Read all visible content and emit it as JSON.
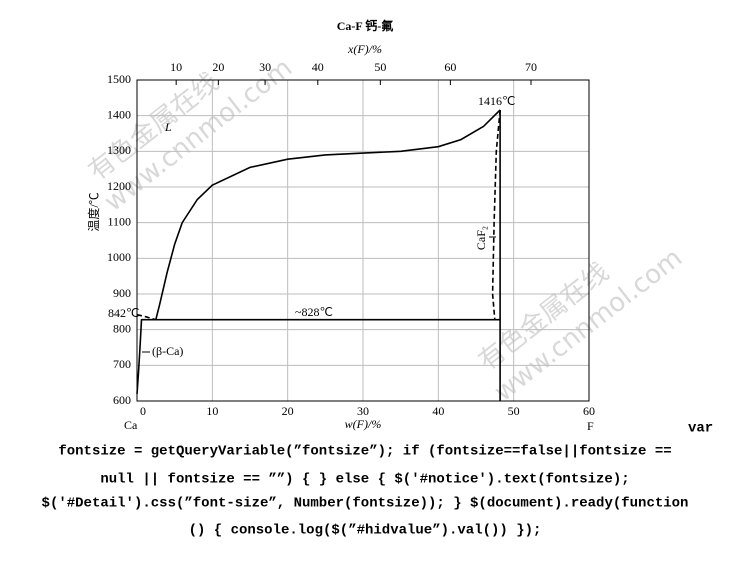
{
  "chart_data": {
    "type": "line",
    "title": "Ca-F  钙-氟",
    "x2label": "x(F)/%",
    "xlabel": "w(F)/%",
    "ylabel": "温度/℃",
    "xlim": [
      0,
      60
    ],
    "xticks": [
      0,
      10,
      20,
      30,
      40,
      50,
      60
    ],
    "ylim": [
      600,
      1500
    ],
    "yticks": [
      600,
      700,
      800,
      900,
      1000,
      1100,
      1200,
      1300,
      1400,
      1500
    ],
    "x2ticks": [
      {
        "value": 5.2,
        "label": "10"
      },
      {
        "value": 10.8,
        "label": "20"
      },
      {
        "value": 17.0,
        "label": "30"
      },
      {
        "value": 24.0,
        "label": "40"
      },
      {
        "value": 32.3,
        "label": "50"
      },
      {
        "value": 41.6,
        "label": "60"
      },
      {
        "value": 52.3,
        "label": "70"
      }
    ],
    "grid": true,
    "series": [
      {
        "color": "#000000",
        "dashed": false,
        "x": [
          2.5,
          3,
          4,
          5,
          6,
          8,
          10,
          15,
          20,
          25,
          30,
          35,
          40,
          43,
          46,
          48.2
        ],
        "values": [
          828,
          870,
          960,
          1040,
          1100,
          1165,
          1205,
          1255,
          1278,
          1290,
          1295,
          1300,
          1313,
          1333,
          1370,
          1416
        ]
      },
      {
        "color": "#000000",
        "dashed": false,
        "x": [
          0.5,
          48.2
        ],
        "values": [
          828,
          828
        ]
      },
      {
        "color": "#000000",
        "dashed": false,
        "x": [
          48.2,
          48.2
        ],
        "values": [
          1416,
          600
        ]
      },
      {
        "color": "#000000",
        "dashed": true,
        "x": [
          48.2,
          47.7,
          47.4,
          47.2,
          47.5
        ],
        "values": [
          1416,
          1300,
          1100,
          900,
          828
        ]
      },
      {
        "color": "#000000",
        "dashed": true,
        "x": [
          0,
          1.2,
          2.5
        ],
        "values": [
          842,
          836,
          828
        ]
      },
      {
        "color": "#000000",
        "dashed": false,
        "x": [
          0.6,
          0.4,
          0.2,
          0
        ],
        "values": [
          828,
          750,
          680,
          620
        ]
      }
    ],
    "annotations": {
      "liquid": "L",
      "peak": "1416℃",
      "melt": "842℃",
      "eutectic": "~828℃",
      "beta": "(β-Ca)",
      "compound": "CaF₂",
      "left_end": "Ca",
      "right_end": "F"
    },
    "watermarks": [
      [
        "有色金属在线",
        "www.cnnmol.com"
      ],
      [
        "有色金属在线",
        "www.cnnmol.com"
      ]
    ]
  },
  "footer_text": [
    "var",
    "fontsize = getQueryVariable(”fontsize”); if (fontsize==false||fontsize ==",
    "null || fontsize == ””) { } else { $('#notice').text(fontsize);",
    "$('#Detail').css(”font-size”, Number(fontsize)); } $(document).ready(function",
    "() { console.log($(”#hidvalue”).val()) });"
  ]
}
